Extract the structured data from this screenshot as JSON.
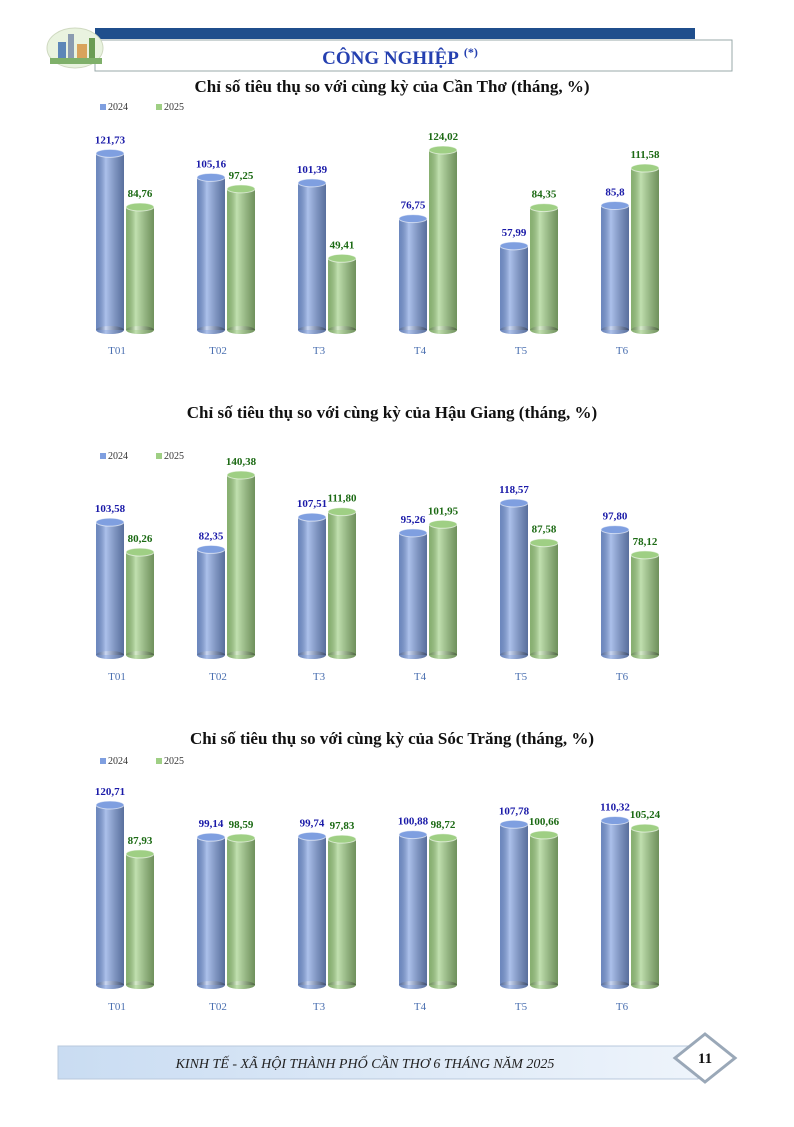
{
  "header": {
    "title": "CÔNG NGHIỆP",
    "note": "(*)"
  },
  "chart_data": [
    {
      "type": "bar",
      "title": "Chỉ số tiêu thụ so với cùng kỳ của Cần Thơ (tháng, %)",
      "categories": [
        "T01",
        "T02",
        "T3",
        "T4",
        "T5",
        "T6"
      ],
      "series": [
        {
          "name": "2024",
          "color": "#7f9fe0",
          "label_color": "#1a1aa8",
          "values": [
            121.73,
            105.16,
            101.39,
            76.75,
            57.99,
            85.8
          ],
          "value_labels": [
            "121,73",
            "105,16",
            "101,39",
            "76,75",
            "57,99",
            "85,8"
          ]
        },
        {
          "name": "2025",
          "color": "#9fcf84",
          "label_color": "#1c6a14",
          "values": [
            84.76,
            97.25,
            49.41,
            124.02,
            84.35,
            111.58
          ],
          "value_labels": [
            "84,76",
            "97,25",
            "49,41",
            "124,02",
            "84,35",
            "111,58"
          ]
        }
      ]
    },
    {
      "type": "bar",
      "title": "Chỉ số tiêu thụ so với cùng kỳ của Hậu Giang (tháng, %)",
      "categories": [
        "T01",
        "T02",
        "T3",
        "T4",
        "T5",
        "T6"
      ],
      "series": [
        {
          "name": "2024",
          "color": "#7f9fe0",
          "label_color": "#1a1aa8",
          "values": [
            103.58,
            82.35,
            107.51,
            95.26,
            118.57,
            97.8
          ],
          "value_labels": [
            "103,58",
            "82,35",
            "107,51",
            "95,26",
            "118,57",
            "97,80"
          ]
        },
        {
          "name": "2025",
          "color": "#9fcf84",
          "label_color": "#1c6a14",
          "values": [
            80.26,
            140.38,
            111.8,
            101.95,
            87.58,
            78.12
          ],
          "value_labels": [
            "80,26",
            "140,38",
            "111,80",
            "101,95",
            "87,58",
            "78,12"
          ]
        }
      ]
    },
    {
      "type": "bar",
      "title": "Chỉ số tiêu thụ so với cùng kỳ của Sóc Trăng (tháng, %)",
      "categories": [
        "T01",
        "T02",
        "T3",
        "T4",
        "T5",
        "T6"
      ],
      "series": [
        {
          "name": "2024",
          "color": "#7f9fe0",
          "label_color": "#1a1aa8",
          "values": [
            120.71,
            99.14,
            99.74,
            100.88,
            107.78,
            110.32
          ],
          "value_labels": [
            "120,71",
            "99,14",
            "99,74",
            "100,88",
            "107,78",
            "110,32"
          ]
        },
        {
          "name": "2025",
          "color": "#9fcf84",
          "label_color": "#1c6a14",
          "values": [
            87.93,
            98.59,
            97.83,
            98.72,
            100.66,
            105.24
          ],
          "value_labels": [
            "87,93",
            "98,59",
            "97,83",
            "98,72",
            "100,66",
            "105,24"
          ]
        }
      ]
    }
  ],
  "footer": {
    "text": "KINH TẾ - XÃ HỘI THÀNH PHỐ CẦN THƠ 6 THÁNG NĂM 2025",
    "page": 11
  }
}
